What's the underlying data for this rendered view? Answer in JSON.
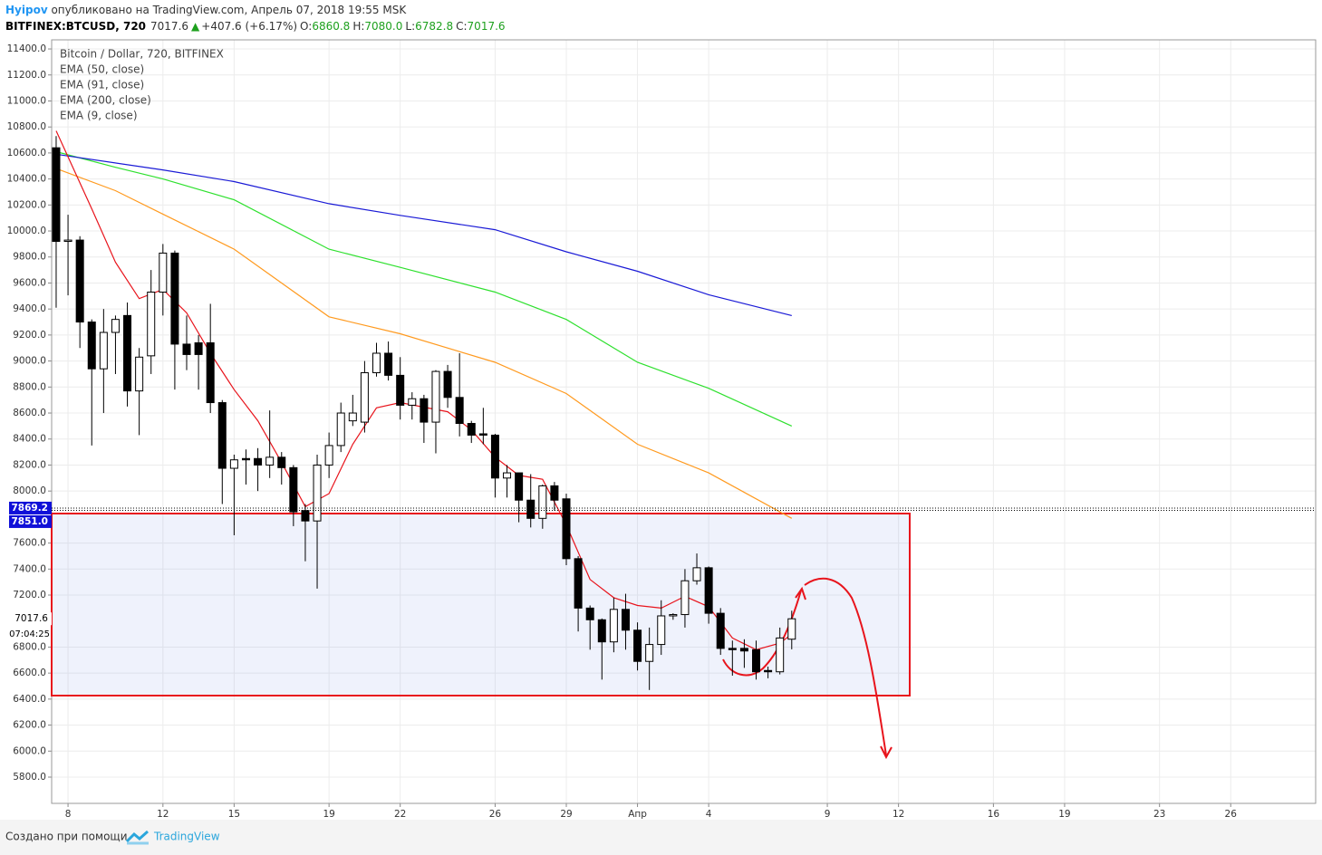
{
  "header": {
    "author": "Hyipov",
    "published": " опубликовано на TradingView.com, Апрель 07, 2018 19:55 MSK",
    "symbol": "BITFINEX:BTCUSD, 720",
    "last": "7017.6",
    "arrow": "▲",
    "change": "+407.6 (+6.17%)",
    "o_label": "O:",
    "o": "6860.8",
    "h_label": "H:",
    "h": "7080.0",
    "l_label": "L:",
    "l": "6782.8",
    "c_label": "C:",
    "c": "7017.6"
  },
  "footer": {
    "made_with": "Создано при помощи",
    "brand": "TradingView"
  },
  "chart_data": {
    "type": "candlestick",
    "title": "Bitcoin / Dollar, 720, BITFINEX",
    "x": [
      7.5,
      8,
      8.5,
      9,
      9.5,
      10,
      10.5,
      11,
      11.5,
      12,
      12.5,
      13,
      13.5,
      14,
      14.5,
      15,
      15.5,
      16,
      16.5,
      17,
      17.5,
      18,
      18.5,
      19,
      19.5,
      20,
      20.5,
      21,
      21.5,
      22,
      22.5,
      23,
      23.5,
      24,
      24.5,
      25,
      25.5,
      26,
      26.5,
      27,
      27.5,
      28,
      28.5,
      29,
      29.5,
      30,
      30.5,
      31,
      31.5,
      32,
      32.5,
      33,
      33.5,
      34,
      34.5,
      35,
      35.5,
      36,
      36.5,
      37,
      37.5,
      38,
      38.5
    ],
    "open": [
      10640,
      9920,
      9930,
      9300,
      8940,
      9220,
      9350,
      8770,
      9040,
      9530,
      9830,
      9130,
      9140,
      9140,
      8680,
      8175,
      8250,
      8250,
      8200,
      8260,
      8180,
      7850,
      7770,
      8200,
      8350,
      8540,
      8530,
      8910,
      9060,
      8890,
      8660,
      8710,
      8530,
      8920,
      8720,
      8520,
      8440,
      8430,
      8100,
      8140,
      7930,
      7790,
      8040,
      7940,
      7480,
      7100,
      7010,
      6840,
      7090,
      6930,
      6690,
      6820,
      7040,
      7050,
      7310,
      7410,
      7060,
      6790,
      6790,
      6780,
      6620,
      6610,
      6860.8
    ],
    "high": [
      10730,
      10125,
      9960,
      9320,
      9400,
      9350,
      9450,
      9100,
      9700,
      9900,
      9850,
      9350,
      9200,
      9440,
      8700,
      8280,
      8320,
      8330,
      8620,
      8300,
      8200,
      7900,
      8280,
      8450,
      8680,
      8740,
      9000,
      9140,
      9150,
      9030,
      8760,
      8740,
      8930,
      8970,
      9060,
      8540,
      8640,
      8440,
      8200,
      8140,
      8130,
      8050,
      8070,
      7980,
      7500,
      7120,
      7020,
      7180,
      7210,
      6990,
      6950,
      7160,
      7060,
      7400,
      7520,
      7420,
      7100,
      6850,
      6860,
      6850,
      6650,
      6950,
      7080
    ],
    "low": [
      9410,
      9505,
      9100,
      8350,
      8600,
      8900,
      8650,
      8430,
      8900,
      9350,
      8780,
      8930,
      8780,
      8600,
      7900,
      7660,
      8050,
      8000,
      8100,
      8050,
      7730,
      7460,
      7250,
      8100,
      8300,
      8500,
      8450,
      8880,
      8850,
      8550,
      8550,
      8370,
      8290,
      8640,
      8420,
      8370,
      8360,
      7950,
      7950,
      7760,
      7720,
      7710,
      7850,
      7430,
      6920,
      6780,
      6550,
      6760,
      6780,
      6620,
      6470,
      6740,
      7010,
      6950,
      7280,
      6980,
      6740,
      6580,
      6640,
      6550,
      6560,
      6590,
      6782.8
    ],
    "close": [
      9920,
      9930,
      9300,
      8940,
      9220,
      9320,
      8770,
      9030,
      9530,
      9830,
      9130,
      9050,
      9050,
      8680,
      8175,
      8240,
      8240,
      8200,
      8260,
      8180,
      7840,
      7770,
      8200,
      8350,
      8600,
      8600,
      8910,
      9060,
      8890,
      8660,
      8710,
      8530,
      8920,
      8720,
      8520,
      8430,
      8430,
      8100,
      8140,
      7930,
      7790,
      8040,
      7930,
      7480,
      7100,
      7010,
      6840,
      7090,
      6930,
      6690,
      6820,
      7040,
      7050,
      7310,
      7410,
      7060,
      6790,
      6780,
      6770,
      6610,
      6610,
      6870,
      7017.6
    ],
    "up_color": "#ffffff",
    "down_color": "#000000",
    "series": [
      {
        "name": "EMA (50, close)",
        "color": "#ff9a1f",
        "x": [
          7.5,
          10,
          12,
          15,
          19,
          22,
          26,
          29,
          32,
          35,
          38.5
        ],
        "values": [
          10480,
          10310,
          10130,
          9860,
          9340,
          9210,
          8990,
          8750,
          8360,
          8140,
          7790
        ]
      },
      {
        "name": "EMA (91, close)",
        "color": "#2ee02e",
        "x": [
          7.5,
          10,
          12,
          15,
          19,
          22,
          26,
          29,
          32,
          35,
          38.5
        ],
        "values": [
          10610,
          10490,
          10400,
          10240,
          9860,
          9720,
          9530,
          9320,
          8990,
          8790,
          8500
        ]
      },
      {
        "name": "EMA (200, close)",
        "color": "#1a1ad6",
        "x": [
          7.5,
          12,
          15,
          19,
          22,
          26,
          29,
          32,
          35,
          38.5
        ],
        "values": [
          10590,
          10470,
          10380,
          10210,
          10120,
          10010,
          9840,
          9690,
          9510,
          9350
        ]
      },
      {
        "name": "EMA (9, close)",
        "color": "#e8141c",
        "x": [
          7.5,
          9,
          10,
          11,
          12,
          13,
          14,
          15,
          16,
          17,
          18,
          19,
          20,
          21,
          22,
          24,
          25,
          26,
          27,
          28,
          29,
          30,
          31,
          32,
          33,
          34,
          35,
          36,
          37,
          38,
          38.5
        ],
        "values": [
          10770,
          10170,
          9760,
          9480,
          9550,
          9370,
          9060,
          8780,
          8540,
          8220,
          7880,
          7980,
          8360,
          8640,
          8680,
          8610,
          8470,
          8260,
          8120,
          8090,
          7740,
          7320,
          7180,
          7120,
          7100,
          7190,
          7110,
          6870,
          6780,
          6830,
          6900
        ]
      }
    ],
    "price_lines": [
      7869.2,
      {
        "value": 7851,
        "label": "7851.0"
      }
    ],
    "last_price": {
      "value": 7017.6,
      "label": "7017.6"
    },
    "countdown": "07:04:25",
    "xlim": [
      7.31,
      60.58
    ],
    "ylim": [
      5598,
      11470
    ],
    "xticks": [
      8,
      12,
      15,
      19,
      22,
      26,
      29,
      {
        "value": 32,
        "label": "Апр"
      },
      {
        "value": 35,
        "label": "4"
      },
      {
        "value": 40,
        "label": "9"
      },
      {
        "value": 43,
        "label": "12"
      },
      {
        "value": 47,
        "label": "16"
      },
      {
        "value": 50,
        "label": "19"
      },
      {
        "value": 54,
        "label": "23"
      },
      {
        "value": 57,
        "label": "26"
      }
    ],
    "yticks": [
      {
        "value": 5800,
        "label": "5800.0"
      },
      {
        "value": 6000,
        "label": "6000.0"
      },
      {
        "value": 6200,
        "label": "6200.0"
      },
      {
        "value": 6400,
        "label": "6400.0"
      },
      {
        "value": 6600,
        "label": "6600.0"
      },
      {
        "value": 6800,
        "label": "6800.0"
      },
      {
        "value": 7200,
        "label": "7200.0"
      },
      {
        "value": 7400,
        "label": "7400.0"
      },
      {
        "value": 7600,
        "label": "7600.0"
      },
      {
        "value": 8000,
        "label": "8000.0"
      },
      {
        "value": 8200,
        "label": "8200.0"
      },
      {
        "value": 8400,
        "label": "8400.0"
      },
      {
        "value": 8600,
        "label": "8600.0"
      },
      {
        "value": 8800,
        "label": "8800.0"
      },
      {
        "value": 9000,
        "label": "9000.0"
      },
      {
        "value": 9200,
        "label": "9200.0"
      },
      {
        "value": 9400,
        "label": "9400.0"
      },
      {
        "value": 9600,
        "label": "9600.0"
      },
      {
        "value": 9800,
        "label": "9800.0"
      },
      {
        "value": 10000,
        "label": "10000.0"
      },
      {
        "value": 10200,
        "label": "10200.0"
      },
      {
        "value": 10400,
        "label": "10400.0"
      },
      {
        "value": 10600,
        "label": "10600.0"
      },
      {
        "value": 10800,
        "label": "10800.0"
      },
      {
        "value": 11000,
        "label": "11000.0"
      },
      {
        "value": 11200,
        "label": "11200.0"
      },
      {
        "value": 11400,
        "label": "11400.0"
      }
    ],
    "grid": true
  }
}
